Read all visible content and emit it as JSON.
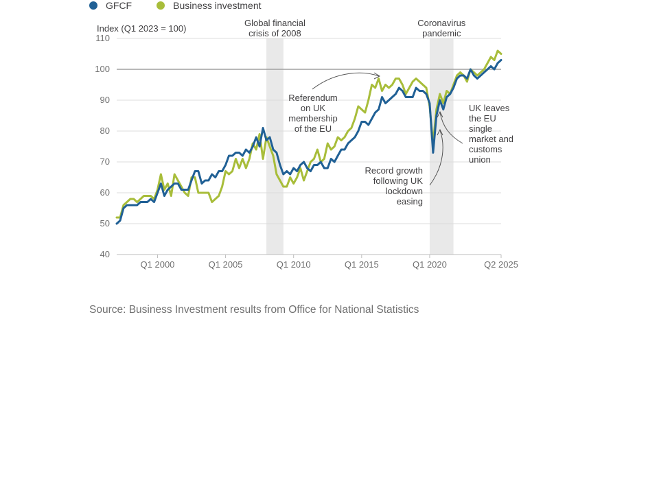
{
  "legend": [
    {
      "name": "GFCF",
      "color": "#206095"
    },
    {
      "name": "Business investment",
      "color": "#a8bd3a"
    }
  ],
  "source": "Source: Business Investment results from Office for National Statistics",
  "chart_data": {
    "type": "line",
    "ylabel": "Index (Q1 2023 = 100)",
    "ylim": [
      40,
      110
    ],
    "yticks": [
      40,
      50,
      60,
      70,
      80,
      90,
      100,
      110
    ],
    "xlim": [
      1997.0,
      2025.25
    ],
    "xticks": [
      {
        "x": 2000.0,
        "label": "Q1 2000"
      },
      {
        "x": 2005.0,
        "label": "Q1 2005"
      },
      {
        "x": 2010.0,
        "label": "Q1 2010"
      },
      {
        "x": 2015.0,
        "label": "Q1 2015"
      },
      {
        "x": 2020.0,
        "label": "Q1 2020"
      },
      {
        "x": 2025.25,
        "label": "Q2 2025"
      }
    ],
    "reference_line": 100,
    "grid": true,
    "shaded_periods": [
      {
        "label": "Global financial crisis of 2008",
        "label_lines": [
          "Global financial",
          "crisis of 2008"
        ],
        "start": 2008.0,
        "end": 2009.25
      },
      {
        "label": "Coronavirus pandemic",
        "label_lines": [
          "Coronavirus",
          "pandemic"
        ],
        "start": 2020.0,
        "end": 2021.75
      }
    ],
    "annotations": [
      {
        "text": "Referendum on UK membership of the EU",
        "lines": [
          "Referendum",
          "on UK",
          "membership",
          "of the EU"
        ],
        "target_x": 2016.5,
        "target_y": 96
      },
      {
        "text": "Record growth following UK lockdown easing",
        "lines": [
          "Record growth",
          "following UK",
          "lockdown",
          "easing"
        ],
        "target_x": 2020.75,
        "target_y": 82
      },
      {
        "text": "UK leaves the EU single market and customs union",
        "lines": [
          "UK leaves",
          "the EU",
          "single",
          "market and",
          "customs",
          "union"
        ],
        "target_x": 2021.0,
        "target_y": 86
      }
    ],
    "x_start": 1997.0,
    "x_step": 0.25,
    "series": [
      {
        "name": "GFCF",
        "color": "#206095",
        "values": [
          50,
          51,
          55,
          56,
          56,
          56,
          56,
          57,
          57,
          57,
          58,
          57,
          60,
          63,
          59,
          61,
          62,
          63,
          63,
          61,
          61,
          61,
          64,
          67,
          67,
          63,
          64,
          64,
          66,
          65,
          67,
          67,
          69,
          72,
          72,
          73,
          73,
          72,
          74,
          73,
          75,
          78,
          75,
          81,
          77,
          78,
          74,
          73,
          69,
          66,
          67,
          66,
          68,
          67,
          69,
          70,
          68,
          67,
          69,
          69,
          70,
          68,
          68,
          71,
          70,
          72,
          74,
          74,
          76,
          77,
          78,
          80,
          83,
          83,
          82,
          84,
          86,
          87,
          91,
          89,
          90,
          91,
          92,
          94,
          93,
          91,
          91,
          91,
          94,
          93,
          93,
          92,
          89,
          73,
          85,
          90,
          87,
          91,
          92,
          94,
          97,
          98,
          98,
          97,
          100,
          98,
          97,
          98,
          99,
          100,
          101,
          100,
          102,
          103
        ]
      },
      {
        "name": "Business investment",
        "color": "#a8bd3a",
        "values": [
          52,
          52,
          56,
          57,
          58,
          58,
          57,
          58,
          59,
          59,
          59,
          58,
          61,
          66,
          61,
          63,
          59,
          66,
          64,
          62,
          60,
          59,
          65,
          65,
          60,
          60,
          60,
          60,
          57,
          58,
          59,
          62,
          67,
          66,
          67,
          71,
          68,
          71,
          68,
          71,
          76,
          74,
          79,
          71,
          78,
          75,
          72,
          66,
          64,
          62,
          62,
          65,
          63,
          65,
          68,
          64,
          67,
          70,
          71,
          74,
          70,
          71,
          76,
          74,
          75,
          78,
          77,
          78,
          80,
          81,
          84,
          88,
          87,
          86,
          90,
          95,
          94,
          97,
          93,
          95,
          94,
          95,
          97,
          97,
          95,
          92,
          94,
          96,
          97,
          96,
          95,
          94,
          88,
          76,
          87,
          92,
          89,
          93,
          92,
          95,
          98,
          99,
          98,
          96,
          100,
          99,
          98,
          99,
          100,
          102,
          104,
          103,
          106,
          105
        ]
      }
    ]
  }
}
